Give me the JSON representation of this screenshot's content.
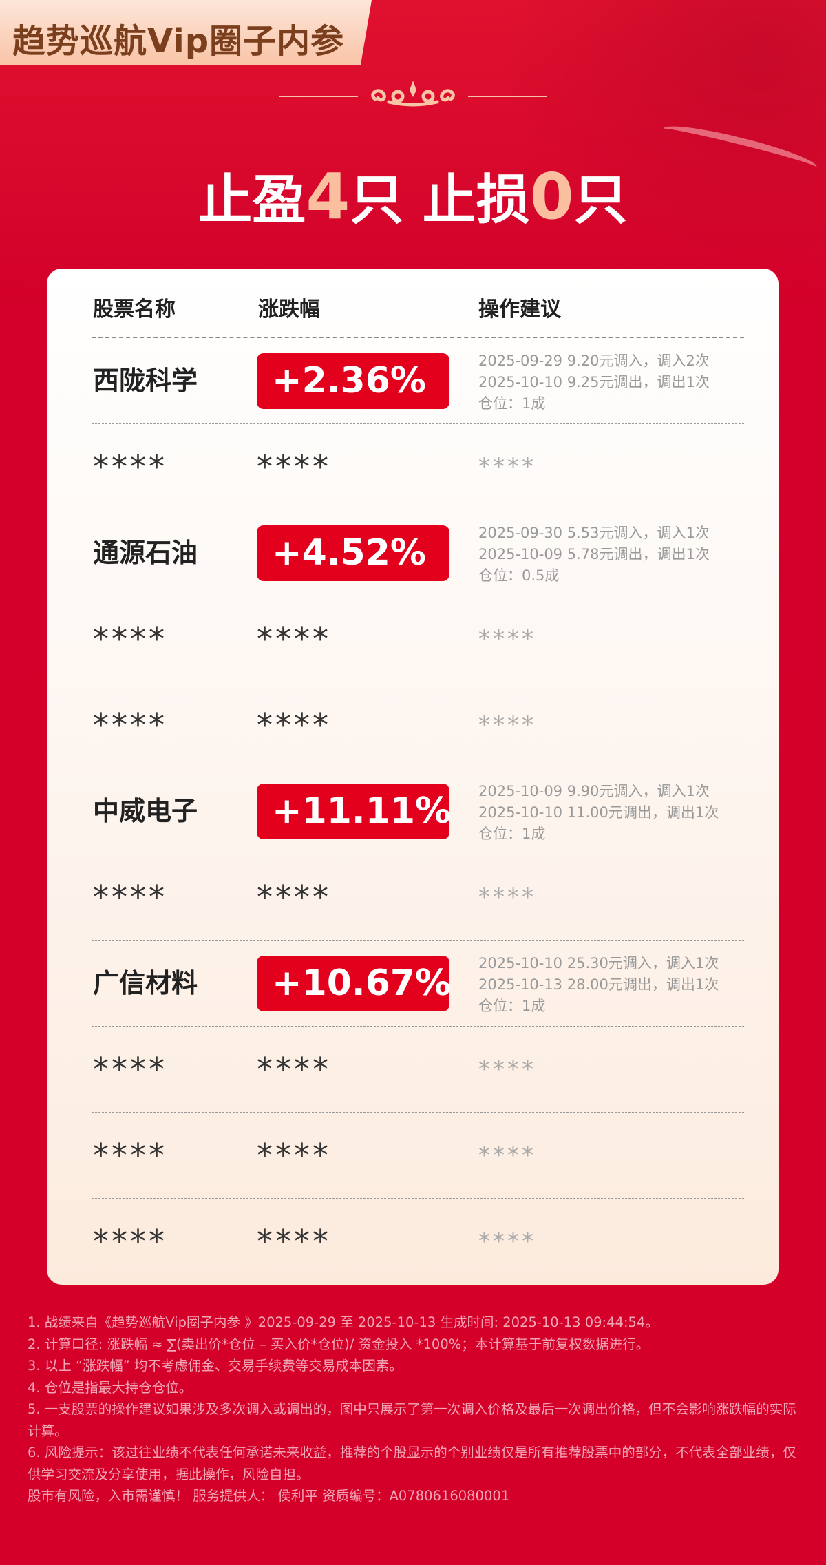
{
  "header": {
    "title": "趋势巡航Vip圈子内参",
    "headline": {
      "prefix1": "止盈",
      "win_count": "4",
      "suffix1": "只 ",
      "prefix2": "止损",
      "loss_count": "0",
      "suffix2": "只"
    }
  },
  "table": {
    "columns": [
      "股票名称",
      "涨跌幅",
      "操作建议"
    ],
    "rows": [
      {
        "name": "西陇科学",
        "change": "+2.36%",
        "advice": [
          "2025-09-29 9.20元调入，调入2次",
          "2025-10-10 9.25元调出，调出1次",
          "仓位：1成"
        ]
      },
      {
        "masked": true,
        "name": "****",
        "change": "****",
        "advice": "****"
      },
      {
        "name": "通源石油",
        "change": "+4.52%",
        "advice": [
          "2025-09-30 5.53元调入，调入1次",
          "2025-10-09 5.78元调出，调出1次",
          "仓位：0.5成"
        ]
      },
      {
        "masked": true,
        "name": "****",
        "change": "****",
        "advice": "****"
      },
      {
        "masked": true,
        "name": "****",
        "change": "****",
        "advice": "****"
      },
      {
        "name": "中威电子",
        "change": "+11.11%",
        "advice": [
          "2025-10-09 9.90元调入，调入1次",
          "2025-10-10 11.00元调出，调出1次",
          "仓位：1成"
        ]
      },
      {
        "masked": true,
        "name": "****",
        "change": "****",
        "advice": "****"
      },
      {
        "name": "广信材料",
        "change": "+10.67%",
        "advice": [
          "2025-10-10 25.30元调入，调入1次",
          "2025-10-13 28.00元调出，调出1次",
          "仓位：1成"
        ]
      },
      {
        "masked": true,
        "name": "****",
        "change": "****",
        "advice": "****"
      },
      {
        "masked": true,
        "name": "****",
        "change": "****",
        "advice": "****"
      },
      {
        "masked": true,
        "name": "****",
        "change": "****",
        "advice": "****"
      }
    ]
  },
  "footer": {
    "notes": [
      "1. 战绩来自《趋势巡航Vip圈子内参 》2025-09-29 至 2025-10-13 生成时间: 2025-10-13 09:44:54。",
      "2. 计算口径: 涨跌幅 ≈ ∑(卖出价*仓位 – 买入价*仓位)/ 资金投入 *100%；本计算基于前复权数据进行。",
      "3. 以上 “涨跌幅” 均不考虑佣金、交易手续费等交易成本因素。",
      "4. 仓位是指最大持仓仓位。",
      "5. 一支股票的操作建议如果涉及多次调入或调出的，图中只展示了第一次调入价格及最后一次调出价格，但不会影响涨跌幅的实际计算。",
      "6. 风险提示：该过往业绩不代表任何承诺未来收益，推荐的个股显示的个别业绩仅是所有推荐股票中的部分，不代表全部业绩，仅供学习交流及分享使用，据此操作，风险自担。",
      "股市有风险，入市需谨慎！ 服务提供人： 侯利平 资质编号：A0780616080001"
    ]
  },
  "colors": {
    "background": "#d4002a",
    "badge": "#e2001d",
    "title_text": "#7b3f1d",
    "highlight_number": "#f9bf9f"
  }
}
